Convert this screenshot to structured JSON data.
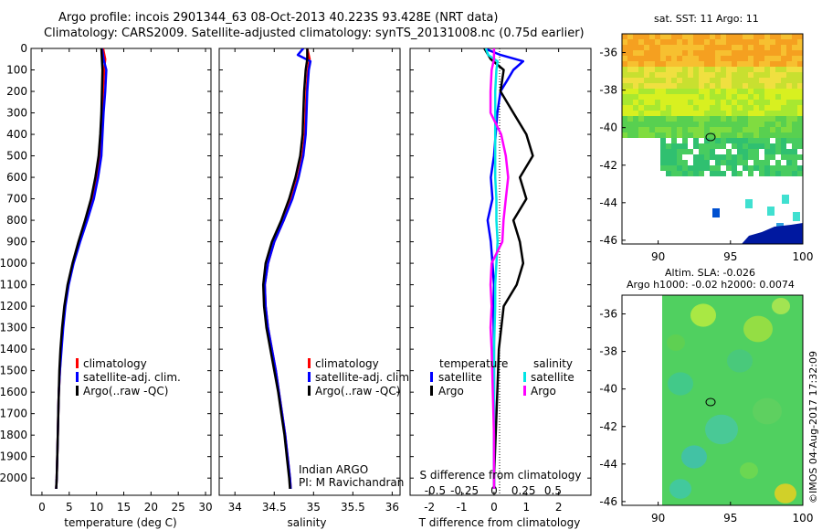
{
  "header": {
    "title_line1": "Argo profile: incois 2901344_63 08-Oct-2013 40.223S 93.428E (NRT data)",
    "title_line2": "Climatology: CARS2009. Satellite-adjusted climatology: synTS_20131008.nc (0.75d earlier)"
  },
  "sst_map": {
    "title": "sat. SST: 11  Argo: 11",
    "xticks": [
      "90",
      "95",
      "100"
    ],
    "yticks": [
      "-36",
      "-38",
      "-40",
      "-42",
      "-44",
      "-46"
    ],
    "xlim": [
      87.5,
      100
    ],
    "ylim": [
      -46.2,
      -35
    ]
  },
  "sla_map": {
    "title1": "Altim. SLA: -0.026",
    "title2": "Argo h1000: -0.02 h2000: 0.0074",
    "xticks": [
      "90",
      "95",
      "100"
    ],
    "yticks": [
      "-36",
      "-38",
      "-40",
      "-42",
      "-44",
      "-46"
    ],
    "xlim": [
      87.5,
      100
    ],
    "ylim": [
      -46.2,
      -35
    ]
  },
  "sidebar_stamp": "©IMOS 04-Aug-2017 17:32:09",
  "colors": {
    "climatology": "#ff0000",
    "satellite": "#0000ff",
    "argo": "#000000",
    "salinity_satellite": "#00e5e5",
    "salinity_argo": "#ff00ff"
  },
  "chart_data": [
    {
      "type": "line",
      "name": "temperature",
      "xlabel": "temperature (deg C)",
      "ylabel": "",
      "xlim": [
        -2,
        31
      ],
      "ylim": [
        2080,
        0
      ],
      "xticks": [
        "0",
        "5",
        "10",
        "15",
        "20",
        "25",
        "30"
      ],
      "xtick_values": [
        0,
        5,
        10,
        15,
        20,
        25,
        30
      ],
      "yticks": [
        "0",
        "100",
        "200",
        "300",
        "400",
        "500",
        "600",
        "700",
        "800",
        "900",
        "1000",
        "1100",
        "1200",
        "1300",
        "1400",
        "1500",
        "1600",
        "1700",
        "1800",
        "1900",
        "2000"
      ],
      "ytick_values": [
        0,
        100,
        200,
        300,
        400,
        500,
        600,
        700,
        800,
        900,
        1000,
        1100,
        1200,
        1300,
        1400,
        1500,
        1600,
        1700,
        1800,
        1900,
        2000
      ],
      "legend": [
        "climatology",
        "satellite-adj. clim.",
        "Argo(..raw -QC)"
      ],
      "series": [
        {
          "name": "climatology",
          "depth": [
            0,
            50,
            100,
            200,
            300,
            400,
            500,
            600,
            700,
            800,
            900,
            1000,
            1100,
            1200,
            1300,
            1400,
            1500,
            1600,
            1700,
            1800,
            1900,
            2000,
            2050
          ],
          "values": [
            11.2,
            11.6,
            11.4,
            11.2,
            11.0,
            10.8,
            10.6,
            10.1,
            9.3,
            8.2,
            6.9,
            5.7,
            4.8,
            4.2,
            3.8,
            3.5,
            3.3,
            3.1,
            3.0,
            2.9,
            2.8,
            2.7,
            2.6
          ]
        },
        {
          "name": "satellite",
          "depth": [
            0,
            50,
            100,
            200,
            300,
            400,
            500,
            600,
            700,
            800,
            900,
            1000,
            1100,
            1200,
            1300,
            1400,
            1500,
            1600,
            1700,
            1800,
            1900,
            2000,
            2050
          ],
          "values": [
            11.0,
            11.3,
            11.8,
            11.6,
            11.3,
            11.1,
            10.9,
            10.3,
            9.5,
            8.3,
            7.0,
            5.8,
            4.9,
            4.3,
            3.9,
            3.6,
            3.3,
            3.1,
            3.0,
            2.9,
            2.8,
            2.7,
            2.6
          ]
        },
        {
          "name": "argo",
          "depth": [
            0,
            50,
            100,
            200,
            300,
            400,
            500,
            600,
            700,
            800,
            900,
            1000,
            1100,
            1200,
            1300,
            1400,
            1500,
            1600,
            1700,
            1800,
            1900,
            2000,
            2050
          ],
          "values": [
            10.9,
            11.0,
            11.1,
            11.0,
            10.9,
            10.7,
            10.4,
            9.8,
            9.0,
            7.9,
            6.7,
            5.6,
            4.7,
            4.1,
            3.7,
            3.4,
            3.2,
            3.1,
            3.0,
            2.9,
            2.8,
            2.7,
            2.6
          ]
        }
      ]
    },
    {
      "type": "line",
      "name": "salinity",
      "xlabel": "salinity",
      "xlim": [
        33.8,
        36.1
      ],
      "ylim": [
        2080,
        0
      ],
      "xticks": [
        "34",
        "34.5",
        "35",
        "35.5",
        "36"
      ],
      "xtick_values": [
        34,
        34.5,
        35,
        35.5,
        36
      ],
      "legend": [
        "climatology",
        "satellite-adj. clim.",
        "Argo(..raw -QC)"
      ],
      "annotation_line1": "Indian ARGO",
      "annotation_line2": "PI: M Ravichandran",
      "series": [
        {
          "name": "climatology",
          "depth": [
            0,
            50,
            100,
            200,
            300,
            400,
            500,
            600,
            700,
            800,
            900,
            1000,
            1100,
            1200,
            1300,
            1400,
            1500,
            1600,
            1700,
            1800,
            1900,
            2000,
            2050
          ],
          "values": [
            34.92,
            34.95,
            34.93,
            34.91,
            34.9,
            34.89,
            34.86,
            34.8,
            34.72,
            34.62,
            34.5,
            34.42,
            34.38,
            34.39,
            34.42,
            34.47,
            34.52,
            34.56,
            34.6,
            34.64,
            34.67,
            34.7,
            34.71
          ]
        },
        {
          "name": "satellite",
          "depth": [
            0,
            30,
            60,
            100,
            200,
            300,
            400,
            500,
            600,
            700,
            800,
            900,
            1000,
            1100,
            1200,
            1300,
            1400,
            1500,
            1600,
            1700,
            1800,
            1900,
            2000,
            2050
          ],
          "values": [
            34.87,
            34.8,
            34.96,
            34.94,
            34.92,
            34.91,
            34.9,
            34.87,
            34.81,
            34.73,
            34.62,
            34.5,
            34.42,
            34.38,
            34.39,
            34.42,
            34.47,
            34.52,
            34.56,
            34.6,
            34.64,
            34.67,
            34.7,
            34.71
          ]
        },
        {
          "name": "argo",
          "depth": [
            0,
            50,
            100,
            200,
            300,
            400,
            500,
            600,
            700,
            800,
            900,
            1000,
            1100,
            1200,
            1300,
            1400,
            1500,
            1600,
            1700,
            1800,
            1900,
            2000,
            2050
          ],
          "values": [
            34.92,
            34.92,
            34.9,
            34.88,
            34.87,
            34.86,
            34.83,
            34.77,
            34.69,
            34.59,
            34.47,
            34.39,
            34.36,
            34.37,
            34.4,
            34.45,
            34.5,
            34.55,
            34.59,
            34.63,
            34.66,
            34.69,
            34.7
          ]
        }
      ]
    },
    {
      "type": "line",
      "name": "difference",
      "xlabel": "T difference from climatology",
      "xlabel_top": "S difference from climatology",
      "xlim": [
        -2.6,
        3.0
      ],
      "ylim": [
        2080,
        0
      ],
      "xticks": [
        "-2",
        "-1",
        "0",
        "1",
        "2"
      ],
      "xtick_values": [
        -2,
        -1,
        0,
        1,
        2
      ],
      "sticks": [
        "-0.5",
        "-0.25",
        "0",
        "0.25",
        "0.5"
      ],
      "stick_values": [
        -0.5,
        -0.25,
        0,
        0.25,
        0.5
      ],
      "legend_temperature_title": "temperature",
      "legend_salinity_title": "salinity",
      "legend_temperature": [
        "satellite",
        "Argo"
      ],
      "legend_salinity": [
        "satellite",
        "Argo"
      ],
      "series": [
        {
          "name": "T satellite",
          "axis": "T",
          "depth": [
            0,
            30,
            60,
            100,
            150,
            200,
            300,
            400,
            500,
            600,
            700,
            800,
            900,
            1000,
            1100,
            1200,
            1400,
            1600,
            1800,
            2000,
            2050
          ],
          "values": [
            -0.3,
            0.2,
            0.9,
            0.6,
            0.4,
            0.2,
            0.1,
            0.05,
            0.0,
            -0.1,
            -0.05,
            -0.2,
            -0.1,
            -0.05,
            0.0,
            -0.02,
            0.0,
            0.0,
            0.0,
            0.0,
            0.0
          ]
        },
        {
          "name": "T argo",
          "axis": "T",
          "depth": [
            0,
            50,
            100,
            200,
            300,
            400,
            500,
            600,
            700,
            800,
            900,
            1000,
            1100,
            1200,
            1400,
            1600,
            1800,
            2000,
            2050
          ],
          "values": [
            -0.3,
            -0.1,
            0.3,
            0.2,
            0.6,
            1.0,
            1.2,
            0.8,
            1.0,
            0.6,
            0.8,
            0.9,
            0.7,
            0.3,
            0.15,
            0.1,
            0.05,
            0.0,
            0.0
          ]
        },
        {
          "name": "S satellite",
          "axis": "S",
          "depth": [
            0,
            30,
            60,
            100,
            200,
            300,
            400,
            500,
            600,
            700,
            800,
            900,
            1000,
            1100,
            1200,
            1400,
            1600,
            1800,
            2000,
            2050
          ],
          "values": [
            -0.07,
            -0.05,
            0.03,
            0.02,
            0.01,
            0.01,
            0.01,
            0.01,
            0.01,
            0.02,
            0.02,
            0.03,
            0.02,
            0.01,
            0.01,
            0.0,
            0.0,
            0.0,
            0.0,
            0.0
          ]
        },
        {
          "name": "S argo",
          "axis": "S",
          "depth": [
            0,
            50,
            100,
            200,
            300,
            400,
            500,
            600,
            700,
            800,
            900,
            1000,
            1100,
            1200,
            1300,
            1400,
            1600,
            1800,
            2000,
            2050
          ],
          "values": [
            0.0,
            0.0,
            -0.02,
            -0.03,
            -0.03,
            0.06,
            0.1,
            0.12,
            0.1,
            0.08,
            0.07,
            -0.02,
            -0.03,
            -0.02,
            -0.03,
            -0.02,
            -0.01,
            0.0,
            0.0,
            0.0
          ]
        }
      ]
    }
  ]
}
